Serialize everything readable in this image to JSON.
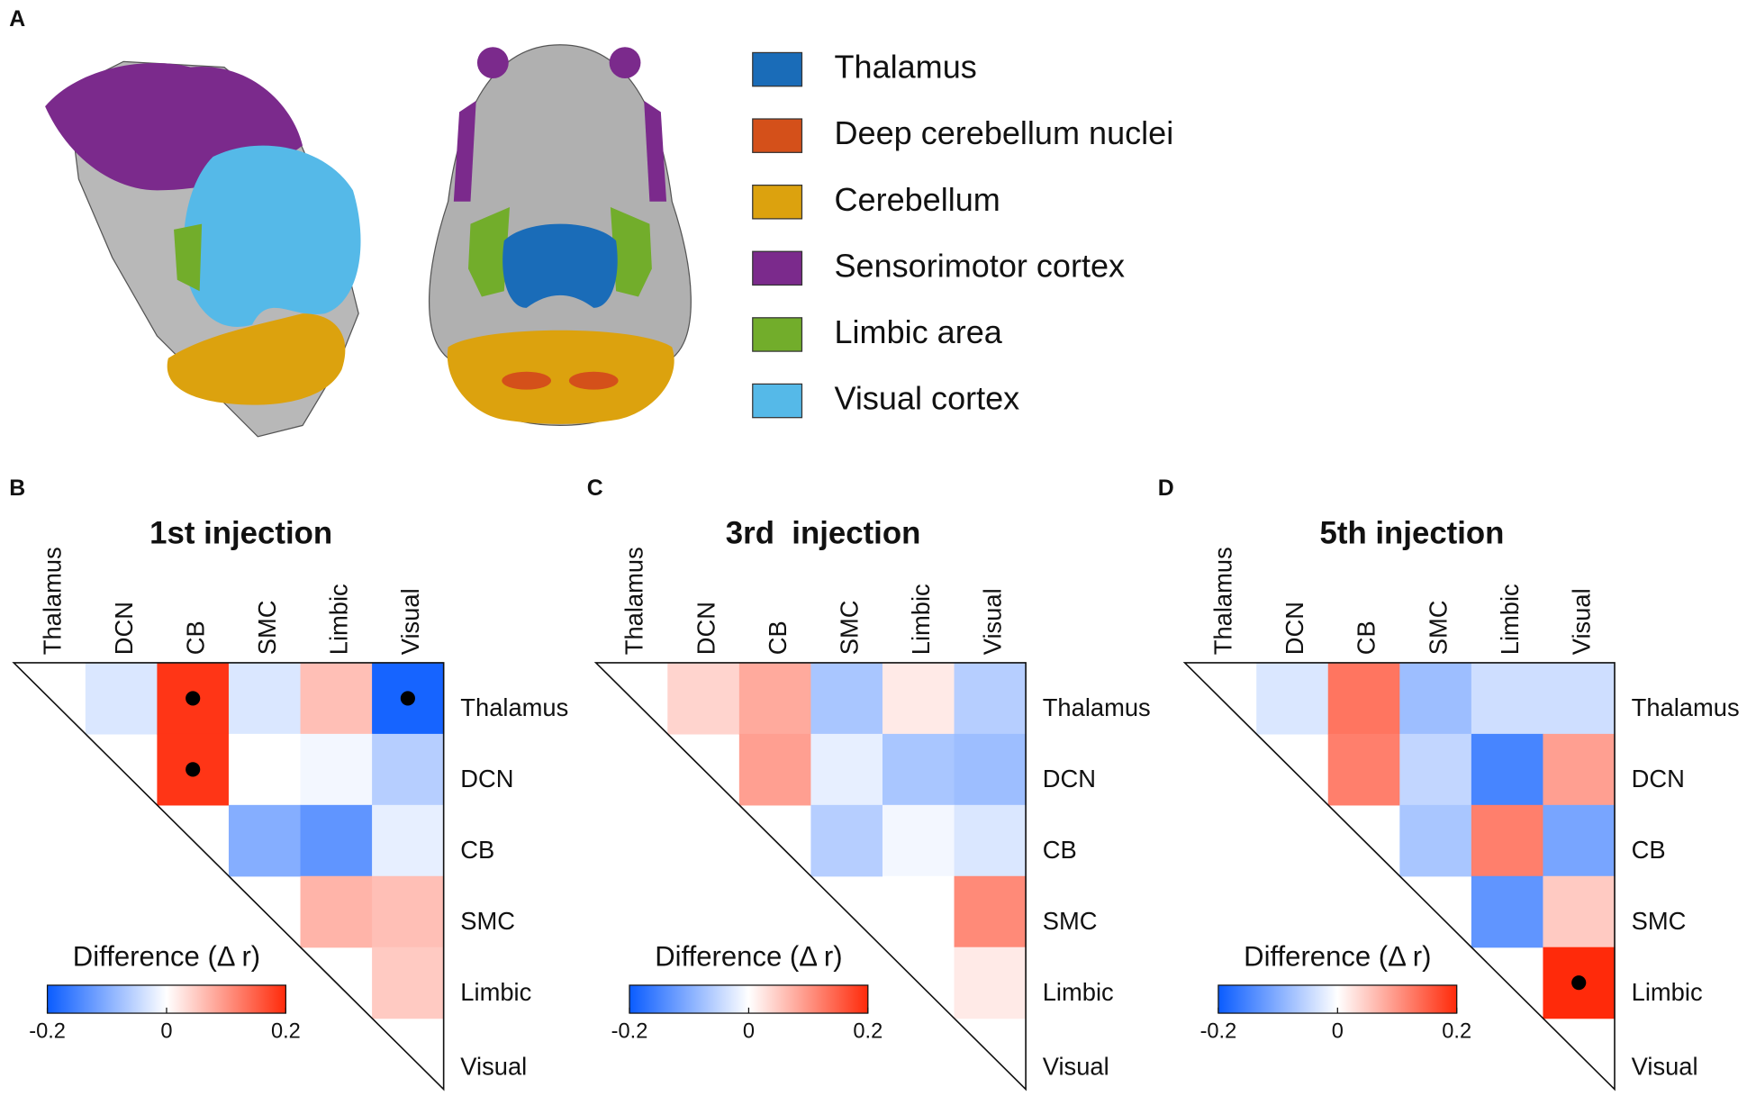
{
  "panel_labels": [
    "A",
    "B",
    "C",
    "D"
  ],
  "legend": [
    {
      "name": "Thalamus",
      "color": "#1a6cb8"
    },
    {
      "name": "Deep cerebellum nuclei",
      "color": "#d4501a"
    },
    {
      "name": "Cerebellum",
      "color": "#dca20e"
    },
    {
      "name": "Sensorimotor cortex",
      "color": "#7b2a8c"
    },
    {
      "name": "Limbic area",
      "color": "#72ad2b"
    },
    {
      "name": "Visual cortex",
      "color": "#55b9e8"
    }
  ],
  "chart_data": [
    {
      "type": "heatmap",
      "title": "1st injection",
      "categories": [
        "Thalamus",
        "DCN",
        "CB",
        "SMC",
        "Limbic",
        "Visual"
      ],
      "row_categories": [
        "Thalamus",
        "DCN",
        "CB",
        "SMC",
        "Limbic",
        "Visual"
      ],
      "values": [
        [
          null,
          -0.03,
          0.19,
          -0.03,
          0.06,
          -0.19
        ],
        [
          null,
          null,
          0.19,
          0.0,
          -0.01,
          -0.06
        ],
        [
          null,
          null,
          null,
          -0.1,
          -0.13,
          -0.02
        ],
        [
          null,
          null,
          null,
          null,
          0.07,
          0.06
        ],
        [
          null,
          null,
          null,
          null,
          null,
          0.05
        ],
        [
          null,
          null,
          null,
          null,
          null,
          null
        ]
      ],
      "significant": [
        [
          0,
          2
        ],
        [
          0,
          5
        ],
        [
          1,
          2
        ]
      ],
      "colorbar": {
        "label": "Difference (Δ r)",
        "lim": [
          -0.2,
          0.2
        ],
        "ticks": [
          -0.2,
          0,
          0.2
        ],
        "cmap": [
          "#0a5cff",
          "#ffffff",
          "#ff2a0a"
        ]
      }
    },
    {
      "type": "heatmap",
      "title": "3rd  injection",
      "categories": [
        "Thalamus",
        "DCN",
        "CB",
        "SMC",
        "Limbic",
        "Visual"
      ],
      "row_categories": [
        "Thalamus",
        "DCN",
        "CB",
        "SMC",
        "Limbic",
        "Visual"
      ],
      "values": [
        [
          null,
          0.04,
          0.08,
          -0.07,
          0.02,
          -0.06
        ],
        [
          null,
          null,
          0.09,
          -0.02,
          -0.07,
          -0.08
        ],
        [
          null,
          null,
          null,
          -0.06,
          -0.01,
          -0.03
        ],
        [
          null,
          null,
          null,
          null,
          0.0,
          0.11
        ],
        [
          null,
          null,
          null,
          null,
          null,
          0.02
        ],
        [
          null,
          null,
          null,
          null,
          null,
          null
        ]
      ],
      "significant": [],
      "colorbar": {
        "label": "Difference (Δ r)",
        "lim": [
          -0.2,
          0.2
        ],
        "ticks": [
          -0.2,
          0,
          0.2
        ],
        "cmap": [
          "#0a5cff",
          "#ffffff",
          "#ff2a0a"
        ]
      }
    },
    {
      "type": "heatmap",
      "title": "5th injection",
      "categories": [
        "Thalamus",
        "DCN",
        "CB",
        "SMC",
        "Limbic",
        "Visual"
      ],
      "row_categories": [
        "Thalamus",
        "DCN",
        "CB",
        "SMC",
        "Limbic",
        "Visual"
      ],
      "values": [
        [
          null,
          -0.03,
          0.13,
          -0.08,
          -0.04,
          -0.04
        ],
        [
          null,
          null,
          0.12,
          -0.05,
          -0.15,
          0.09
        ],
        [
          null,
          null,
          null,
          -0.07,
          0.12,
          -0.11
        ],
        [
          null,
          null,
          null,
          null,
          -0.13,
          0.05
        ],
        [
          null,
          null,
          null,
          null,
          null,
          0.2
        ],
        [
          null,
          null,
          null,
          null,
          null,
          null
        ]
      ],
      "significant": [
        [
          4,
          5
        ]
      ],
      "colorbar": {
        "label": "Difference (Δ r)",
        "lim": [
          -0.2,
          0.2
        ],
        "ticks": [
          -0.2,
          0,
          0.2
        ],
        "cmap": [
          "#0a5cff",
          "#ffffff",
          "#ff2a0a"
        ]
      }
    }
  ]
}
